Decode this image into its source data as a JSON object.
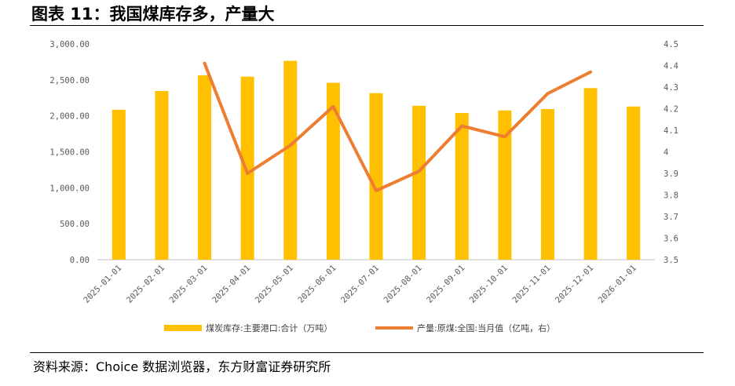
{
  "figure": {
    "title": "图表 11：我国煤库存多，产量大",
    "source": "资料来源：Choice 数据浏览器，东方财富证券研究所"
  },
  "colors": {
    "bar": "#FFC000",
    "line": "#ED7D31",
    "axis": "#BFBFBF",
    "text": "#595959"
  },
  "chart_data": {
    "type": "bar+line",
    "title": "",
    "categories": [
      "2025-01-01",
      "2025-02-01",
      "2025-03-01",
      "2025-04-01",
      "2025-05-01",
      "2025-06-01",
      "2025-07-01",
      "2025-08-01",
      "2025-09-01",
      "2025-10-01",
      "2025-11-01",
      "2025-12-01",
      "2026-01-01"
    ],
    "series": [
      {
        "name": "煤炭库存:主要港口:合计（万吨）",
        "type": "bar",
        "axis": "left",
        "values": [
          2085,
          2345,
          2565,
          2545,
          2765,
          2460,
          2315,
          2140,
          2040,
          2075,
          2095,
          2385,
          2130
        ]
      },
      {
        "name": "产量:原煤:全国:当月值（亿吨，右）",
        "type": "line",
        "axis": "right",
        "values": [
          null,
          null,
          4.41,
          3.9,
          4.03,
          4.21,
          3.82,
          3.91,
          4.12,
          4.07,
          4.27,
          4.37,
          null
        ]
      }
    ],
    "y_left": {
      "min": 0,
      "max": 3000,
      "ticks": [
        "0.00",
        "500.00",
        "1,000.00",
        "1,500.00",
        "2,000.00",
        "2,500.00",
        "3,000.00"
      ]
    },
    "y_right": {
      "min": 3.5,
      "max": 4.5,
      "ticks": [
        "3.5",
        "3.6",
        "3.7",
        "3.8",
        "3.9",
        "4",
        "4.1",
        "4.2",
        "4.3",
        "4.4",
        "4.5"
      ]
    },
    "legend_position": "bottom"
  }
}
